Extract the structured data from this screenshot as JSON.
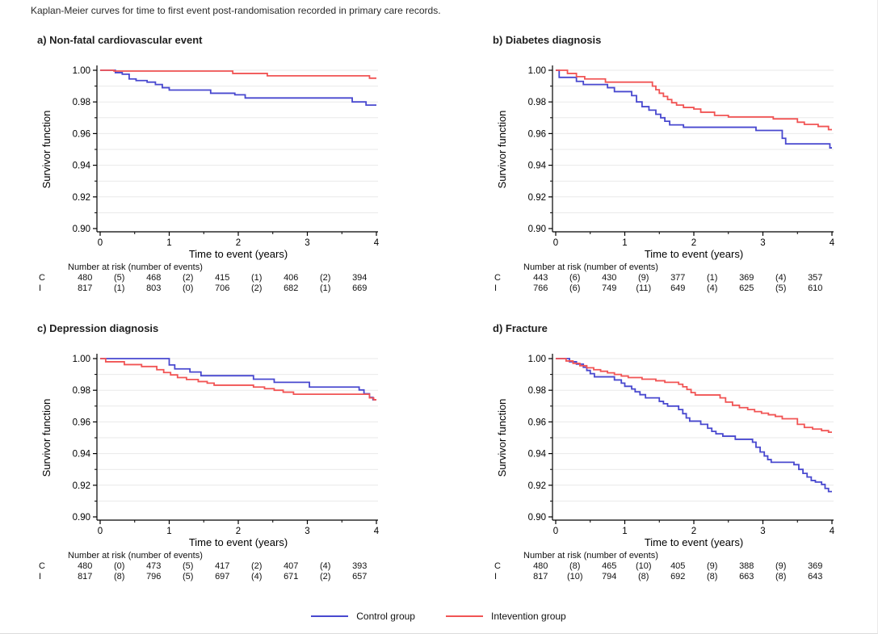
{
  "caption": "Kaplan-Meier curves for time to first event post-randomisation recorded in primary care records.",
  "colors": {
    "control": "#4848cf",
    "intervention": "#f15454",
    "gridline": "#e9e9e9",
    "axis": "#000000"
  },
  "legend": {
    "items": [
      {
        "label": "Control group",
        "color": "#4848cf"
      },
      {
        "label": "Intevention group",
        "color": "#f15454"
      }
    ]
  },
  "chart_data": [
    {
      "id": "a",
      "type": "line",
      "subtype": "kaplan-meier-step",
      "title": "a) Non-fatal cardiovascular event",
      "xlabel": "Time to event (years)",
      "ylabel": "Survivor function",
      "xlim": [
        0,
        4
      ],
      "ylim": [
        0.9,
        1.0
      ],
      "xticks": [
        0,
        1,
        2,
        3,
        4
      ],
      "xminorticks": [
        0.5,
        1.5,
        2.5,
        3.5
      ],
      "yticks": [
        0.9,
        0.92,
        0.94,
        0.96,
        0.98,
        1.0
      ],
      "grid": "horizontal lines every 0.01",
      "series": [
        {
          "name": "Control group",
          "color": "#4848cf",
          "steps": [
            [
              0,
              1.0
            ],
            [
              0.22,
              0.9985
            ],
            [
              0.32,
              0.9975
            ],
            [
              0.42,
              0.9945
            ],
            [
              0.52,
              0.9935
            ],
            [
              0.68,
              0.9925
            ],
            [
              0.8,
              0.991
            ],
            [
              0.9,
              0.989
            ],
            [
              1.0,
              0.9875
            ],
            [
              1.6,
              0.9855
            ],
            [
              1.95,
              0.9845
            ],
            [
              2.1,
              0.9825
            ],
            [
              3.65,
              0.98
            ],
            [
              3.85,
              0.978
            ]
          ]
        },
        {
          "name": "Intevention group",
          "color": "#f15454",
          "steps": [
            [
              0,
              1.0
            ],
            [
              0.2,
              0.9995
            ],
            [
              1.92,
              0.998
            ],
            [
              2.42,
              0.9965
            ],
            [
              3.9,
              0.995
            ]
          ]
        }
      ],
      "risk_table": {
        "header": "Number at risk (number of events)",
        "rows": [
          {
            "label": "C",
            "cells": [
              "480",
              "(5)",
              "468",
              "(2)",
              "415",
              "(1)",
              "406",
              "(2)",
              "394"
            ]
          },
          {
            "label": "I",
            "cells": [
              "817",
              "(1)",
              "803",
              "(0)",
              "706",
              "(2)",
              "682",
              "(1)",
              "669"
            ]
          }
        ]
      }
    },
    {
      "id": "b",
      "type": "line",
      "subtype": "kaplan-meier-step",
      "title": "b) Diabetes diagnosis",
      "xlabel": "Time to event (years)",
      "ylabel": "Survivor function",
      "xlim": [
        0,
        4
      ],
      "ylim": [
        0.9,
        1.0
      ],
      "xticks": [
        0,
        1,
        2,
        3,
        4
      ],
      "xminorticks": [
        0.5,
        1.5,
        2.5,
        3.5
      ],
      "yticks": [
        0.9,
        0.92,
        0.94,
        0.96,
        0.98,
        1.0
      ],
      "grid": "horizontal lines every 0.01",
      "series": [
        {
          "name": "Control group",
          "color": "#4848cf",
          "steps": [
            [
              0,
              1.0
            ],
            [
              0.05,
              0.9955
            ],
            [
              0.3,
              0.993
            ],
            [
              0.4,
              0.991
            ],
            [
              0.75,
              0.989
            ],
            [
              0.85,
              0.9865
            ],
            [
              1.1,
              0.984
            ],
            [
              1.17,
              0.98
            ],
            [
              1.25,
              0.977
            ],
            [
              1.35,
              0.9748
            ],
            [
              1.45,
              0.9722
            ],
            [
              1.52,
              0.97
            ],
            [
              1.58,
              0.9678
            ],
            [
              1.65,
              0.9655
            ],
            [
              1.85,
              0.964
            ],
            [
              2.9,
              0.962
            ],
            [
              3.28,
              0.957
            ],
            [
              3.33,
              0.9535
            ],
            [
              3.97,
              0.951
            ]
          ]
        },
        {
          "name": "Intevention group",
          "color": "#f15454",
          "steps": [
            [
              0,
              1.0
            ],
            [
              0.17,
              0.998
            ],
            [
              0.3,
              0.996
            ],
            [
              0.42,
              0.9945
            ],
            [
              0.72,
              0.9925
            ],
            [
              1.4,
              0.99
            ],
            [
              1.45,
              0.9877
            ],
            [
              1.5,
              0.9855
            ],
            [
              1.56,
              0.9835
            ],
            [
              1.62,
              0.9815
            ],
            [
              1.68,
              0.9795
            ],
            [
              1.75,
              0.978
            ],
            [
              1.85,
              0.9765
            ],
            [
              2.0,
              0.9755
            ],
            [
              2.1,
              0.9735
            ],
            [
              2.3,
              0.9715
            ],
            [
              2.5,
              0.9705
            ],
            [
              3.15,
              0.9693
            ],
            [
              3.5,
              0.9672
            ],
            [
              3.6,
              0.9658
            ],
            [
              3.8,
              0.9645
            ],
            [
              3.95,
              0.9625
            ]
          ]
        }
      ],
      "risk_table": {
        "header": "Number at risk (number of events)",
        "rows": [
          {
            "label": "C",
            "cells": [
              "443",
              "(6)",
              "430",
              "(9)",
              "377",
              "(1)",
              "369",
              "(4)",
              "357"
            ]
          },
          {
            "label": "I",
            "cells": [
              "766",
              "(6)",
              "749",
              "(11)",
              "649",
              "(4)",
              "625",
              "(5)",
              "610"
            ]
          }
        ]
      }
    },
    {
      "id": "c",
      "type": "line",
      "subtype": "kaplan-meier-step",
      "title": "c) Depression diagnosis",
      "xlabel": "Time to event (years)",
      "ylabel": "Survivor function",
      "xlim": [
        0,
        4
      ],
      "ylim": [
        0.9,
        1.0
      ],
      "xticks": [
        0,
        1,
        2,
        3,
        4
      ],
      "xminorticks": [
        0.5,
        1.5,
        2.5,
        3.5
      ],
      "yticks": [
        0.9,
        0.92,
        0.94,
        0.96,
        0.98,
        1.0
      ],
      "grid": "horizontal lines every 0.01",
      "series": [
        {
          "name": "Control group",
          "color": "#4848cf",
          "steps": [
            [
              0,
              1.0
            ],
            [
              1.0,
              0.996
            ],
            [
              1.08,
              0.9935
            ],
            [
              1.3,
              0.9915
            ],
            [
              1.46,
              0.9892
            ],
            [
              2.22,
              0.987
            ],
            [
              2.52,
              0.985
            ],
            [
              3.03,
              0.982
            ],
            [
              3.75,
              0.9802
            ],
            [
              3.82,
              0.9778
            ],
            [
              3.9,
              0.9755
            ],
            [
              3.95,
              0.974
            ]
          ]
        },
        {
          "name": "Intevention group",
          "color": "#f15454",
          "steps": [
            [
              0,
              1.0
            ],
            [
              0.08,
              0.998
            ],
            [
              0.35,
              0.9962
            ],
            [
              0.6,
              0.995
            ],
            [
              0.82,
              0.993
            ],
            [
              0.92,
              0.9912
            ],
            [
              1.02,
              0.9897
            ],
            [
              1.12,
              0.988
            ],
            [
              1.25,
              0.9868
            ],
            [
              1.42,
              0.9855
            ],
            [
              1.55,
              0.9845
            ],
            [
              1.65,
              0.9832
            ],
            [
              2.22,
              0.982
            ],
            [
              2.38,
              0.981
            ],
            [
              2.52,
              0.98
            ],
            [
              2.65,
              0.9788
            ],
            [
              2.8,
              0.9775
            ],
            [
              3.9,
              0.9752
            ],
            [
              3.96,
              0.974
            ]
          ]
        }
      ],
      "risk_table": {
        "header": "Number at risk (number of events)",
        "rows": [
          {
            "label": "C",
            "cells": [
              "480",
              "(0)",
              "473",
              "(5)",
              "417",
              "(2)",
              "407",
              "(4)",
              "393"
            ]
          },
          {
            "label": "I",
            "cells": [
              "817",
              "(8)",
              "796",
              "(5)",
              "697",
              "(4)",
              "671",
              "(2)",
              "657"
            ]
          }
        ]
      }
    },
    {
      "id": "d",
      "type": "line",
      "subtype": "kaplan-meier-step",
      "title": "d) Fracture",
      "xlabel": "Time to event (years)",
      "ylabel": "Survivor function",
      "xlim": [
        0,
        4
      ],
      "ylim": [
        0.9,
        1.0
      ],
      "xticks": [
        0,
        1,
        2,
        3,
        4
      ],
      "xminorticks": [
        0.5,
        1.5,
        2.5,
        3.5
      ],
      "yticks": [
        0.9,
        0.92,
        0.94,
        0.96,
        0.98,
        1.0
      ],
      "grid": "horizontal lines every 0.01",
      "series": [
        {
          "name": "Control group",
          "color": "#4848cf",
          "steps": [
            [
              0,
              1.0
            ],
            [
              0.2,
              0.998
            ],
            [
              0.3,
              0.9965
            ],
            [
              0.4,
              0.9945
            ],
            [
              0.45,
              0.9925
            ],
            [
              0.5,
              0.9905
            ],
            [
              0.56,
              0.9885
            ],
            [
              0.85,
              0.9865
            ],
            [
              0.95,
              0.9845
            ],
            [
              1.0,
              0.9825
            ],
            [
              1.1,
              0.9808
            ],
            [
              1.15,
              0.979
            ],
            [
              1.22,
              0.9772
            ],
            [
              1.3,
              0.9752
            ],
            [
              1.5,
              0.973
            ],
            [
              1.56,
              0.9715
            ],
            [
              1.62,
              0.97
            ],
            [
              1.78,
              0.9678
            ],
            [
              1.84,
              0.9652
            ],
            [
              1.89,
              0.9625
            ],
            [
              1.94,
              0.9605
            ],
            [
              2.1,
              0.9585
            ],
            [
              2.2,
              0.956
            ],
            [
              2.26,
              0.954
            ],
            [
              2.32,
              0.9525
            ],
            [
              2.42,
              0.951
            ],
            [
              2.6,
              0.949
            ],
            [
              2.85,
              0.9472
            ],
            [
              2.9,
              0.944
            ],
            [
              2.96,
              0.941
            ],
            [
              3.02,
              0.9385
            ],
            [
              3.07,
              0.9362
            ],
            [
              3.12,
              0.9345
            ],
            [
              3.45,
              0.933
            ],
            [
              3.52,
              0.93
            ],
            [
              3.58,
              0.9275
            ],
            [
              3.64,
              0.9252
            ],
            [
              3.7,
              0.923
            ],
            [
              3.76,
              0.922
            ],
            [
              3.85,
              0.9205
            ],
            [
              3.9,
              0.918
            ],
            [
              3.95,
              0.916
            ]
          ]
        },
        {
          "name": "Intevention group",
          "color": "#f15454",
          "steps": [
            [
              0,
              1.0
            ],
            [
              0.15,
              0.9985
            ],
            [
              0.25,
              0.997
            ],
            [
              0.35,
              0.9955
            ],
            [
              0.45,
              0.9942
            ],
            [
              0.55,
              0.993
            ],
            [
              0.65,
              0.992
            ],
            [
              0.75,
              0.991
            ],
            [
              0.85,
              0.99
            ],
            [
              0.95,
              0.989
            ],
            [
              1.05,
              0.988
            ],
            [
              1.25,
              0.987
            ],
            [
              1.45,
              0.986
            ],
            [
              1.58,
              0.985
            ],
            [
              1.78,
              0.9838
            ],
            [
              1.84,
              0.9822
            ],
            [
              1.9,
              0.9805
            ],
            [
              1.96,
              0.9785
            ],
            [
              2.02,
              0.977
            ],
            [
              2.38,
              0.9752
            ],
            [
              2.46,
              0.9725
            ],
            [
              2.56,
              0.9705
            ],
            [
              2.66,
              0.969
            ],
            [
              2.78,
              0.9678
            ],
            [
              2.88,
              0.9665
            ],
            [
              2.98,
              0.9655
            ],
            [
              3.08,
              0.9645
            ],
            [
              3.18,
              0.9635
            ],
            [
              3.28,
              0.962
            ],
            [
              3.5,
              0.9585
            ],
            [
              3.6,
              0.9565
            ],
            [
              3.72,
              0.9555
            ],
            [
              3.85,
              0.9545
            ],
            [
              3.95,
              0.9535
            ]
          ]
        }
      ],
      "risk_table": {
        "header": "Number at risk (number of events)",
        "rows": [
          {
            "label": "C",
            "cells": [
              "480",
              "(8)",
              "465",
              "(10)",
              "405",
              "(9)",
              "388",
              "(9)",
              "369"
            ]
          },
          {
            "label": "I",
            "cells": [
              "817",
              "(10)",
              "794",
              "(8)",
              "692",
              "(8)",
              "663",
              "(8)",
              "643"
            ]
          }
        ]
      }
    }
  ]
}
